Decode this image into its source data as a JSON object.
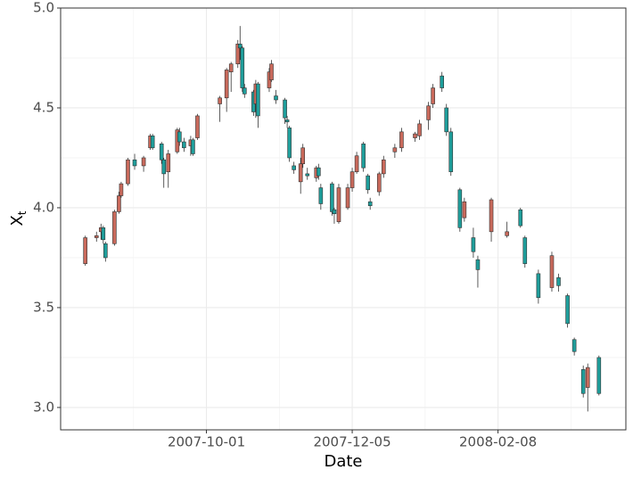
{
  "chart_data": {
    "type": "candlestick",
    "xlabel": "Date",
    "ylabel": "X",
    "ylabel_subscript": "t",
    "up_color": "#C8695B",
    "down_color": "#1F9E9B",
    "grid": true,
    "xlim": [
      "2007-07-28",
      "2008-04-05"
    ],
    "xticks": [
      "2007-10-01",
      "2007-12-05",
      "2008-02-08"
    ],
    "ylim": [
      2.888,
      5.0
    ],
    "yticks": [
      {
        "value": 3,
        "label": "3.0"
      },
      3.5,
      {
        "value": 4,
        "label": "4.0"
      },
      4.5,
      {
        "value": 5,
        "label": "5.0"
      }
    ],
    "x": [
      "2007-08-08",
      "2007-08-13",
      "2007-08-15",
      "2007-08-16",
      "2007-08-17",
      "2007-08-21",
      "2007-08-23",
      "2007-08-24",
      "2007-08-27",
      "2007-08-30",
      "2007-09-03",
      "2007-09-06",
      "2007-09-07",
      "2007-09-11",
      "2007-09-12",
      "2007-09-14",
      "2007-09-18",
      "2007-09-19",
      "2007-09-21",
      "2007-09-24",
      "2007-09-25",
      "2007-09-27",
      "2007-10-07",
      "2007-10-10",
      "2007-10-12",
      "2007-10-15",
      "2007-10-16",
      "2007-10-17",
      "2007-10-18",
      "2007-10-22",
      "2007-10-23",
      "2007-10-24",
      "2007-10-29",
      "2007-10-30",
      "2007-11-01",
      "2007-11-05",
      "2007-11-06",
      "2007-11-07",
      "2007-11-09",
      "2007-11-12",
      "2007-11-13",
      "2007-11-15",
      "2007-11-19",
      "2007-11-20",
      "2007-11-21",
      "2007-11-26",
      "2007-11-27",
      "2007-11-29",
      "2007-12-03",
      "2007-12-05",
      "2007-12-07",
      "2007-12-10",
      "2007-12-12",
      "2007-12-13",
      "2007-12-17",
      "2007-12-19",
      "2007-12-24",
      "2007-12-27",
      "2008-01-02",
      "2008-01-04",
      "2008-01-08",
      "2008-01-10",
      "2008-01-14",
      "2008-01-16",
      "2008-01-18",
      "2008-01-22",
      "2008-01-24",
      "2008-01-28",
      "2008-01-30",
      "2008-02-05",
      "2008-02-12",
      "2008-02-18",
      "2008-02-20",
      "2008-02-26",
      "2008-03-03",
      "2008-03-06",
      "2008-03-10",
      "2008-03-13",
      "2008-03-17",
      "2008-03-19",
      "2008-03-24"
    ],
    "open": [
      3.72,
      3.85,
      3.88,
      3.9,
      3.82,
      3.82,
      3.98,
      4.06,
      4.12,
      4.24,
      4.21,
      4.3,
      4.36,
      4.32,
      4.24,
      4.18,
      4.28,
      4.38,
      4.33,
      4.31,
      4.34,
      4.35,
      4.52,
      4.55,
      4.68,
      4.72,
      4.82,
      4.8,
      4.6,
      4.58,
      4.52,
      4.62,
      4.6,
      4.64,
      4.56,
      4.54,
      4.44,
      4.4,
      4.21,
      4.13,
      4.22,
      4.17,
      4.15,
      4.2,
      4.1,
      4.12,
      3.99,
      3.93,
      4.0,
      4.1,
      4.18,
      4.32,
      4.16,
      4.03,
      4.08,
      4.17,
      4.28,
      4.3,
      4.35,
      4.36,
      4.44,
      4.52,
      4.66,
      4.5,
      4.38,
      4.09,
      3.95,
      3.85,
      3.74,
      3.88,
      3.86,
      3.99,
      3.85,
      3.67,
      3.6,
      3.65,
      3.56,
      3.34,
      3.19,
      3.1,
      3.25
    ],
    "high": [
      3.86,
      3.88,
      3.92,
      3.91,
      3.83,
      3.99,
      4.08,
      4.13,
      4.25,
      4.27,
      4.26,
      4.37,
      4.37,
      4.33,
      4.25,
      4.29,
      4.4,
      4.4,
      4.35,
      4.36,
      4.35,
      4.47,
      4.56,
      4.7,
      4.73,
      4.84,
      4.91,
      4.81,
      4.62,
      4.59,
      4.64,
      4.63,
      4.7,
      4.74,
      4.59,
      4.55,
      4.46,
      4.41,
      4.23,
      4.25,
      4.32,
      4.2,
      4.21,
      4.22,
      4.12,
      4.13,
      4.0,
      4.12,
      4.12,
      4.2,
      4.28,
      4.33,
      4.17,
      4.05,
      4.18,
      4.26,
      4.32,
      4.4,
      4.38,
      4.44,
      4.53,
      4.62,
      4.68,
      4.52,
      4.4,
      4.1,
      4.05,
      3.9,
      3.76,
      4.05,
      3.93,
      4.0,
      3.86,
      3.69,
      3.78,
      3.67,
      3.57,
      3.35,
      3.21,
      3.22,
      3.26
    ],
    "low": [
      3.71,
      3.83,
      3.84,
      3.82,
      3.73,
      3.81,
      3.97,
      4.05,
      4.11,
      4.19,
      4.18,
      4.29,
      4.29,
      4.22,
      4.1,
      4.1,
      4.27,
      4.31,
      4.28,
      4.26,
      4.26,
      4.34,
      4.43,
      4.48,
      4.58,
      4.7,
      4.74,
      4.58,
      4.55,
      4.46,
      4.45,
      4.4,
      4.58,
      4.63,
      4.52,
      4.42,
      4.4,
      4.23,
      4.17,
      4.07,
      4.2,
      4.14,
      4.13,
      4.14,
      3.99,
      3.96,
      3.92,
      3.92,
      3.99,
      4.08,
      4.17,
      4.18,
      4.07,
      3.99,
      4.06,
      4.15,
      4.25,
      4.28,
      4.33,
      4.34,
      4.39,
      4.5,
      4.58,
      4.36,
      4.16,
      3.88,
      3.93,
      3.75,
      3.6,
      3.83,
      3.85,
      3.9,
      3.7,
      3.52,
      3.58,
      3.58,
      3.4,
      3.26,
      3.05,
      2.98,
      3.06
    ],
    "close": [
      3.85,
      3.86,
      3.9,
      3.84,
      3.75,
      3.98,
      4.06,
      4.12,
      4.24,
      4.21,
      4.25,
      4.36,
      4.3,
      4.24,
      4.17,
      4.27,
      4.39,
      4.33,
      4.3,
      4.34,
      4.27,
      4.46,
      4.55,
      4.69,
      4.72,
      4.82,
      4.8,
      4.6,
      4.57,
      4.48,
      4.62,
      4.46,
      4.68,
      4.72,
      4.54,
      4.45,
      4.43,
      4.25,
      4.19,
      4.22,
      4.3,
      4.16,
      4.2,
      4.16,
      4.02,
      3.98,
      3.97,
      4.1,
      4.1,
      4.18,
      4.26,
      4.2,
      4.09,
      4.01,
      4.17,
      4.24,
      4.3,
      4.38,
      4.37,
      4.42,
      4.51,
      4.6,
      4.6,
      4.38,
      4.18,
      3.9,
      4.03,
      3.78,
      3.69,
      4.04,
      3.88,
      3.91,
      3.72,
      3.55,
      3.76,
      3.61,
      3.42,
      3.28,
      3.07,
      3.2,
      3.07
    ]
  }
}
